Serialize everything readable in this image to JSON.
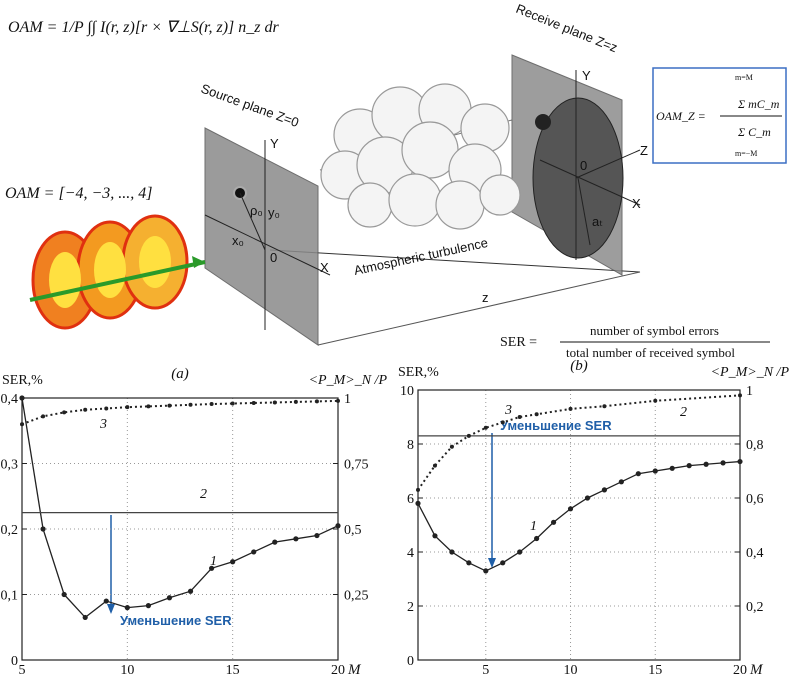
{
  "diagram": {
    "formula_oam": "OAM = 1/P ∫∫ I(r, z)[r × ∇⊥S(r, z)] n_z dr",
    "oam_set": "OAM = [−4, −3, ..., 4]",
    "source_plane": "Source plane Z=0",
    "receive_plane": "Receive plane Z=z",
    "turbulence": "Atmospheric turbulence",
    "distance": "z",
    "source_axes": {
      "y": "Y",
      "x": "X",
      "origin": "0",
      "x0": "x₀",
      "y0": "y₀",
      "rho0": "ρ₀"
    },
    "receive_axes": {
      "y": "Y",
      "z": "Z",
      "x": "X",
      "origin": "0",
      "radius": "aₜ"
    },
    "oam_z": {
      "lhs": "OAM_Z =",
      "upper": "m=M",
      "lower": "m=−M",
      "numerator": "Σ mC_m",
      "denominator": "Σ C_m"
    },
    "ser": {
      "lhs": "SER =",
      "numerator": "number of symbol errors",
      "denominator": "total number of received symbol"
    }
  },
  "chart_data": [
    {
      "type": "line",
      "title": "(a)",
      "ylabel": "SER,%",
      "y2label": "<P_M>_N /P",
      "xlabel": "M",
      "annotation": "Уменьшение SER",
      "xlim": [
        5,
        20
      ],
      "xticks": [
        5,
        10,
        15,
        20
      ],
      "ylim": [
        0,
        0.4
      ],
      "yticks": [
        0,
        {
          "value": 0.1,
          "label": "0,1"
        },
        {
          "value": 0.2,
          "label": "0,2"
        },
        {
          "value": 0.3,
          "label": "0,3"
        },
        {
          "value": 0.4,
          "label": "0,4"
        }
      ],
      "y2lim": [
        0,
        1
      ],
      "y2ticks": [
        {
          "value": 0.25,
          "label": "0,25"
        },
        {
          "value": 0.5,
          "label": "0,5"
        },
        {
          "value": 0.75,
          "label": "0,75"
        },
        1
      ],
      "grid": true,
      "series": [
        {
          "name": "1",
          "color": "#222222",
          "line_style": "solid",
          "markers": true,
          "x": [
            5,
            6,
            7,
            8,
            9,
            10,
            11,
            12,
            13,
            14,
            15,
            16,
            17,
            18,
            19,
            20
          ],
          "values": [
            0.4,
            0.2,
            0.1,
            0.065,
            0.09,
            0.08,
            0.083,
            0.095,
            0.105,
            0.14,
            0.15,
            0.165,
            0.18,
            0.185,
            0.19,
            0.205
          ]
        },
        {
          "name": "2",
          "color": "#444444",
          "line_style": "solid",
          "markers": false,
          "x": [
            5,
            20
          ],
          "values": [
            0.225,
            0.225
          ]
        },
        {
          "name": "3",
          "color": "#222222",
          "line_style": "dotted",
          "markers": true,
          "axis": "y2",
          "x": [
            5,
            6,
            7,
            8,
            9,
            10,
            11,
            12,
            13,
            14,
            15,
            16,
            17,
            18,
            19,
            20
          ],
          "values": [
            0.9,
            0.93,
            0.945,
            0.955,
            0.96,
            0.965,
            0.968,
            0.971,
            0.974,
            0.977,
            0.979,
            0.981,
            0.983,
            0.985,
            0.987,
            0.989
          ]
        }
      ]
    },
    {
      "type": "line",
      "title": "(b)",
      "ylabel": "SER,%",
      "y2label": "<P_M>_N /P",
      "xlabel": "M",
      "annotation": "Уменьшение SER",
      "xlim": [
        1,
        20
      ],
      "xticks": [
        5,
        10,
        15,
        20
      ],
      "ylim": [
        0,
        10
      ],
      "yticks": [
        0,
        2,
        4,
        6,
        8,
        10
      ],
      "y2lim": [
        0,
        1
      ],
      "y2ticks": [
        {
          "value": 0.2,
          "label": "0,2"
        },
        {
          "value": 0.4,
          "label": "0,4"
        },
        {
          "value": 0.6,
          "label": "0,6"
        },
        {
          "value": 0.8,
          "label": "0,8"
        },
        1
      ],
      "grid": true,
      "series": [
        {
          "name": "1",
          "color": "#222222",
          "line_style": "solid",
          "markers": true,
          "x": [
            1,
            2,
            3,
            4,
            5,
            6,
            7,
            8,
            9,
            10,
            11,
            12,
            13,
            14,
            15,
            16,
            17,
            18,
            19,
            20
          ],
          "values": [
            5.8,
            4.6,
            4.0,
            3.6,
            3.3,
            3.6,
            4.0,
            4.5,
            5.1,
            5.6,
            6.0,
            6.3,
            6.6,
            6.9,
            7.0,
            7.1,
            7.2,
            7.25,
            7.3,
            7.35
          ]
        },
        {
          "name": "2",
          "color": "#444444",
          "line_style": "solid",
          "markers": false,
          "x": [
            1,
            20
          ],
          "values": [
            8.3,
            8.3
          ]
        },
        {
          "name": "3",
          "color": "#222222",
          "line_style": "dotted",
          "markers": true,
          "axis": "y2",
          "x": [
            1,
            2,
            3,
            4,
            5,
            6,
            7,
            8,
            10,
            12,
            15,
            20
          ],
          "values": [
            0.63,
            0.72,
            0.79,
            0.83,
            0.86,
            0.88,
            0.9,
            0.91,
            0.93,
            0.94,
            0.96,
            0.98
          ]
        }
      ]
    }
  ]
}
